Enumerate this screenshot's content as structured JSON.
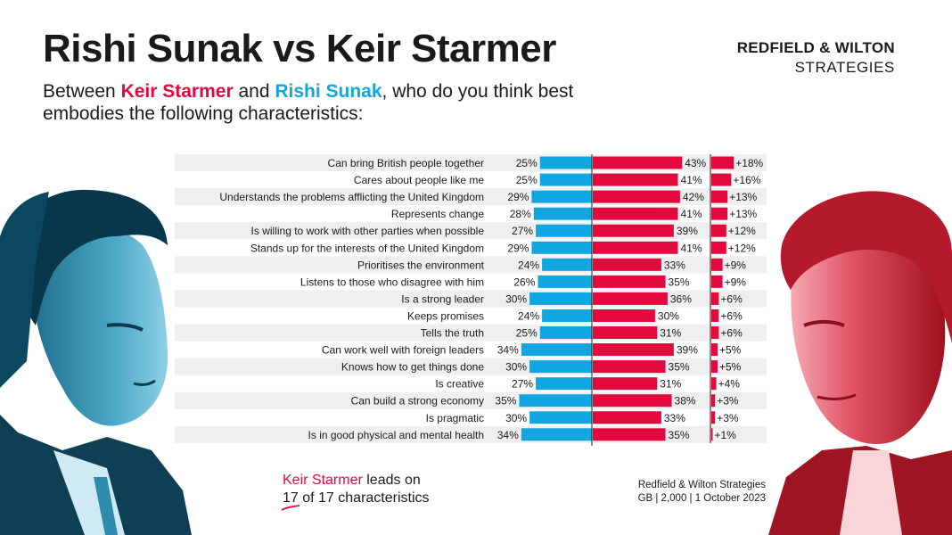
{
  "header": {
    "title": "Rishi Sunak vs Keir Starmer",
    "subtitle_parts": [
      "Between ",
      "Keir Starmer",
      " and ",
      "Rishi Sunak",
      ", who do you think best embodies the following characteristics:"
    ],
    "brand_line1": "REDFIELD & WILTON",
    "brand_line2": "STRATEGIES"
  },
  "colors": {
    "sunak": "#12a6e0",
    "starmer": "#e3093e",
    "row_shade": "#efefef"
  },
  "chart_data": {
    "type": "bar",
    "categories": [
      "Can bring British people together",
      "Cares about people like me",
      "Understands the problems afflicting the United Kingdom",
      "Represents change",
      "Is willing to work with other parties when possible",
      "Stands up for the interests of the United Kingdom",
      "Prioritises the environment",
      "Listens to those who disagree with him",
      "Is a strong leader",
      "Keeps promises",
      "Tells the truth",
      "Can work well with foreign leaders",
      "Knows how to get things done",
      "Is creative",
      "Can build a strong economy",
      "Is pragmatic",
      "Is in good physical and mental health"
    ],
    "series": [
      {
        "name": "Rishi Sunak",
        "values": [
          25,
          25,
          29,
          28,
          27,
          29,
          24,
          26,
          30,
          24,
          25,
          34,
          30,
          27,
          35,
          30,
          34
        ]
      },
      {
        "name": "Keir Starmer",
        "values": [
          43,
          41,
          42,
          41,
          39,
          41,
          33,
          35,
          36,
          30,
          31,
          39,
          35,
          31,
          38,
          33,
          35
        ]
      }
    ],
    "lead_labels": [
      "+18%",
      "+16%",
      "+13%",
      "+13%",
      "+12%",
      "+12%",
      "+9%",
      "+9%",
      "+6%",
      "+6%",
      "+6%",
      "+5%",
      "+5%",
      "+4%",
      "+3%",
      "+3%",
      "+1%"
    ],
    "lead_values": [
      18,
      16,
      13,
      13,
      12,
      12,
      9,
      9,
      6,
      6,
      6,
      5,
      5,
      4,
      3,
      3,
      1
    ],
    "value_suffix": "%"
  },
  "footer": {
    "leader_name": "Keir Starmer",
    "leads_text": " leads on",
    "count": "17",
    "count_rest": " of 17 characteristics",
    "source_line1": "Redfield & Wilton Strategies",
    "source_line2": "GB | 2,000 | 1 October 2023"
  }
}
